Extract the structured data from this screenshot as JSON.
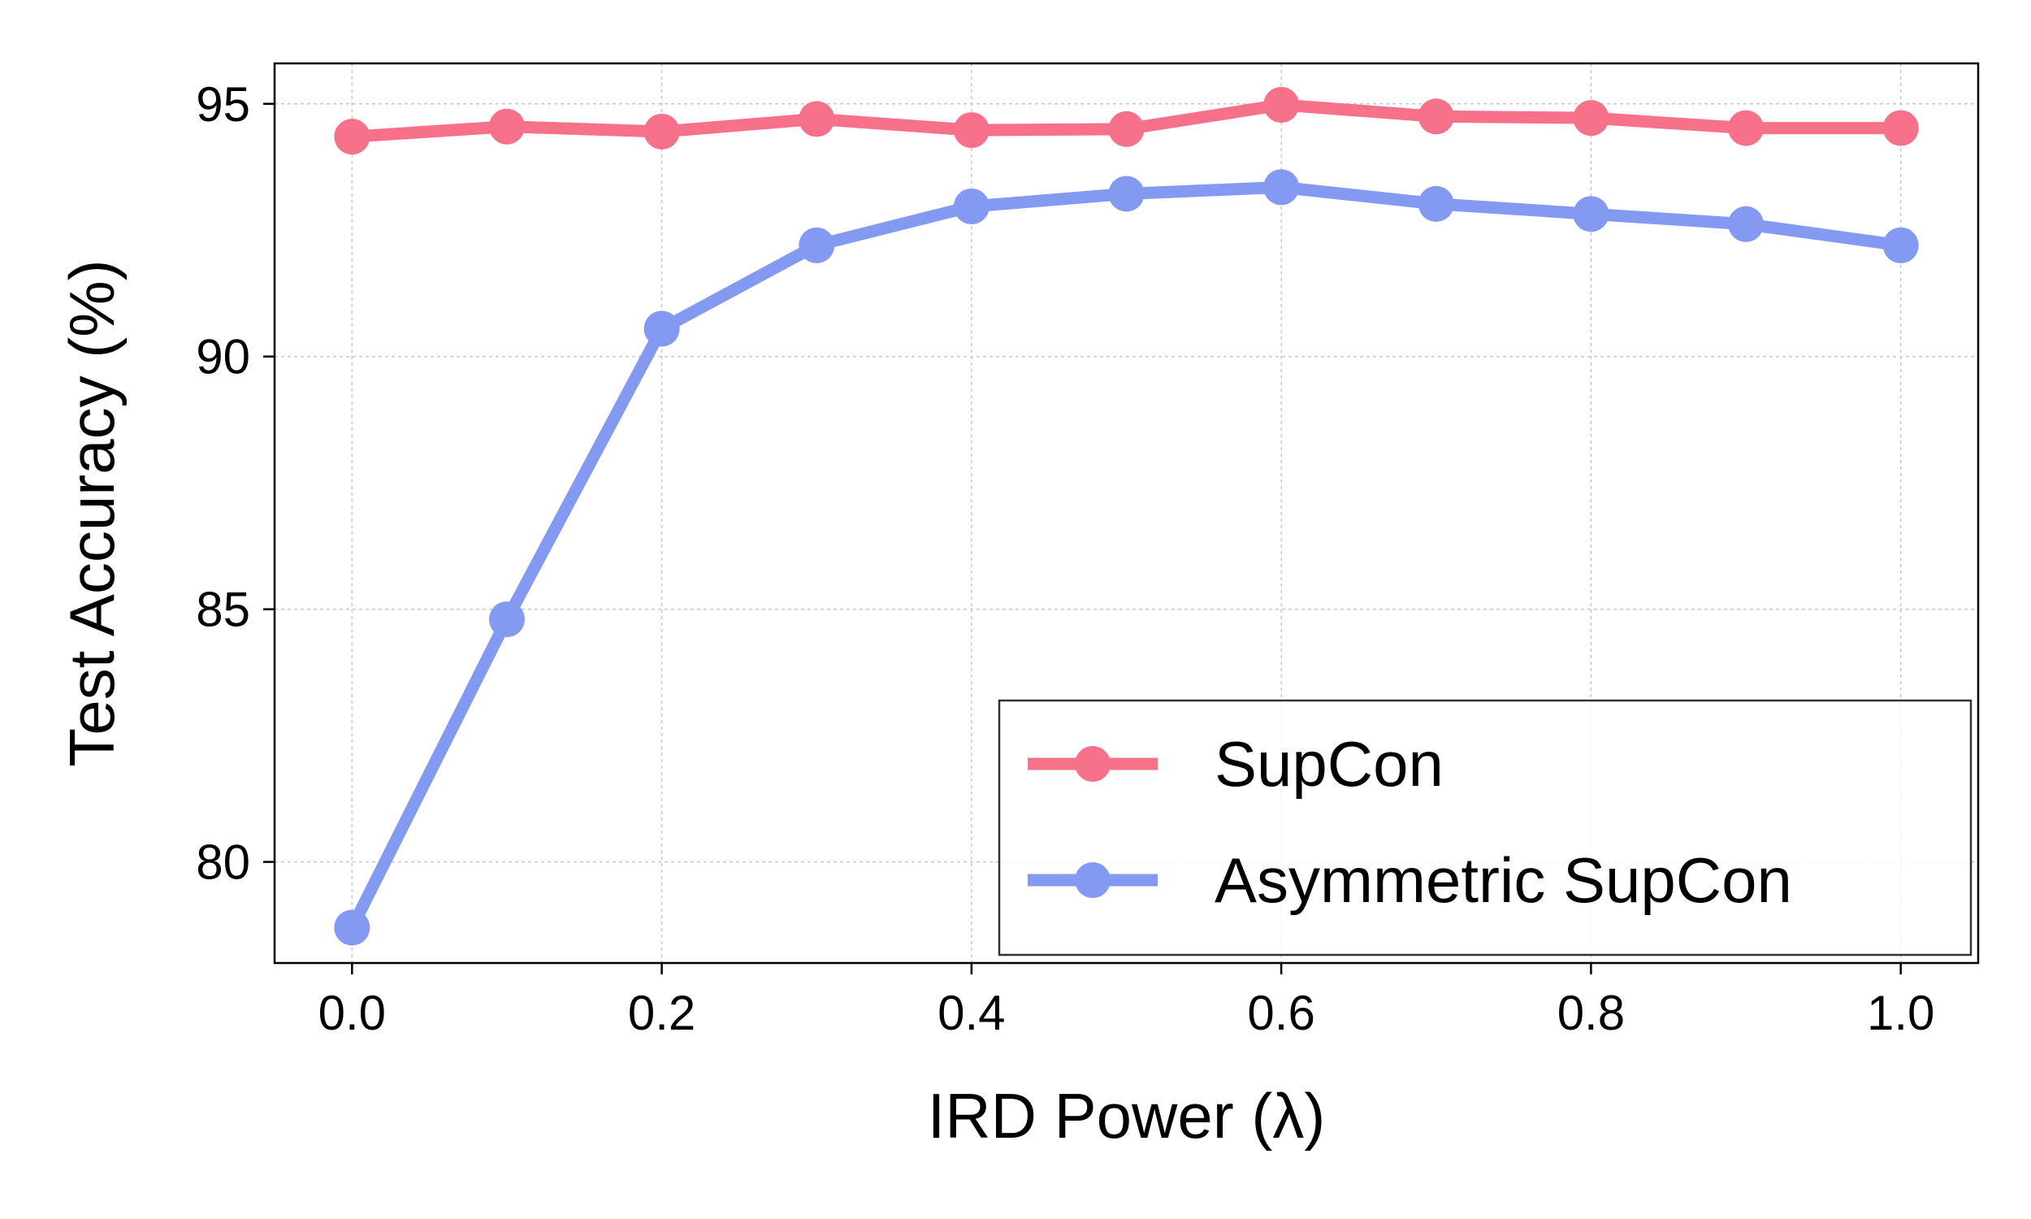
{
  "chart_data": {
    "type": "line",
    "title": "",
    "xlabel": "IRD Power (λ)",
    "ylabel": "Test Accuracy (%)",
    "x": [
      0.0,
      0.1,
      0.2,
      0.3,
      0.4,
      0.5,
      0.6,
      0.7,
      0.8,
      0.9,
      1.0
    ],
    "xlim": [
      -0.05,
      1.05
    ],
    "ylim": [
      78.0,
      95.8
    ],
    "xticks": [
      0.0,
      0.2,
      0.4,
      0.6,
      0.8,
      1.0
    ],
    "xtick_labels": [
      "0.0",
      "0.2",
      "0.4",
      "0.6",
      "0.8",
      "1.0"
    ],
    "yticks": [
      80,
      85,
      90,
      95
    ],
    "ytick_labels": [
      "80",
      "85",
      "90",
      "95"
    ],
    "grid": true,
    "legend_position": "bottom-right",
    "series": [
      {
        "name": "SupCon",
        "color": "#f7718a",
        "values": [
          94.35,
          94.55,
          94.45,
          94.7,
          94.48,
          94.5,
          94.98,
          94.75,
          94.72,
          94.52,
          94.52
        ]
      },
      {
        "name": "Asymmetric SupCon",
        "color": "#8499f2",
        "values": [
          78.7,
          84.8,
          90.55,
          92.2,
          92.97,
          93.22,
          93.35,
          93.02,
          92.82,
          92.62,
          92.2
        ]
      }
    ]
  }
}
